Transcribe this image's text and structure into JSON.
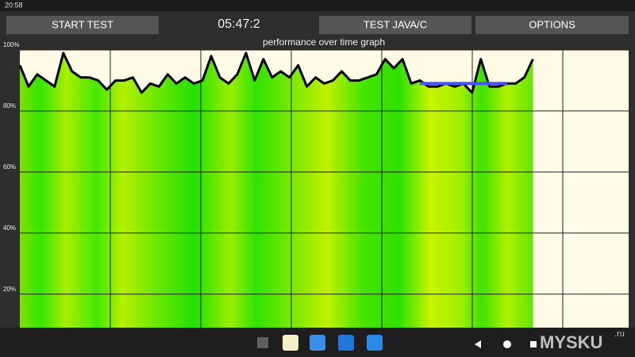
{
  "status_bar": {
    "time": "20:58"
  },
  "buttons": [
    "START TEST",
    "TEST JAVA/C",
    "OPTIONS"
  ],
  "timer": "05:47:2",
  "watermark": {
    "text": "MYSKU",
    "suffix": ".ru"
  },
  "chart_data": {
    "type": "line",
    "title": "performance over time graph",
    "color": "#000000",
    "values": [
      95,
      88,
      92,
      90,
      88,
      99,
      93,
      91,
      91,
      90,
      87,
      90,
      90,
      91,
      86,
      89,
      88,
      92,
      89,
      91,
      89,
      90,
      98,
      91,
      89,
      92,
      99,
      90,
      97,
      91,
      93,
      91,
      95,
      88,
      91,
      89,
      90,
      93,
      90,
      90,
      91,
      92,
      97,
      94,
      97,
      89,
      90,
      88,
      88,
      89,
      88,
      89,
      86,
      97,
      88,
      88,
      89,
      89,
      91,
      97
    ],
    "xlim": [
      0,
      70
    ],
    "ylim": [
      9,
      100
    ],
    "yticks": [
      {
        "value": 20,
        "label": "20%"
      },
      {
        "value": 40,
        "label": "40%"
      },
      {
        "value": 60,
        "label": "60%"
      },
      {
        "value": 80,
        "label": "80%"
      },
      {
        "value": 100,
        "label": "100%"
      }
    ],
    "grid": true,
    "mean_line": {
      "x": [
        46,
        56
      ],
      "value": 89,
      "color": "#4455ff"
    }
  }
}
